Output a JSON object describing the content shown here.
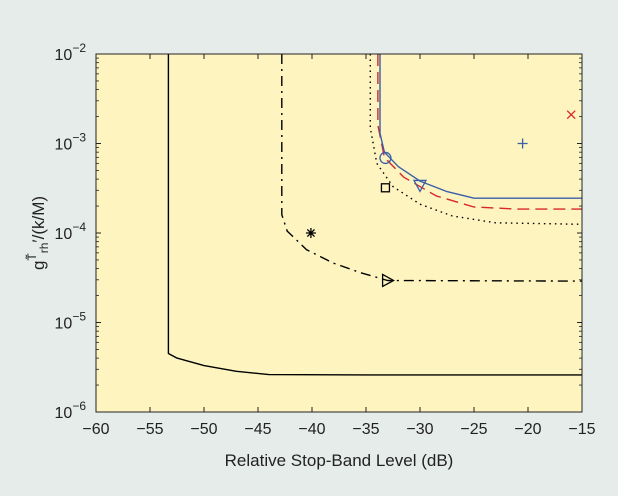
{
  "chart_data": {
    "type": "line",
    "xlabel": "Relative Stop-Band Level (dB)",
    "ylabel": "g^{T̃_rh'}/(k/M)",
    "ylabel_parts": {
      "base": "g",
      "sup": "T̃",
      "sub": "rh",
      "tail": "′/(k/M)"
    },
    "xlim": [
      -60,
      -15
    ],
    "ylim": [
      1e-06,
      0.01
    ],
    "yscale": "log",
    "grid": false,
    "x_ticks": [
      -60,
      -55,
      -50,
      -45,
      -40,
      -35,
      -30,
      -25,
      -20,
      -15
    ],
    "y_ticks": [
      {
        "value": 1e-06,
        "mantissa": "10",
        "exp": "−6"
      },
      {
        "value": 1e-05,
        "mantissa": "10",
        "exp": "−5"
      },
      {
        "value": 0.0001,
        "mantissa": "10",
        "exp": "−4"
      },
      {
        "value": 0.001,
        "mantissa": "10",
        "exp": "−3"
      },
      {
        "value": 0.01,
        "mantissa": "10",
        "exp": "−2"
      }
    ],
    "series": [
      {
        "color": "#000000",
        "dash": "solid",
        "points": [
          [
            -53.3,
            0.01
          ],
          [
            -53.3,
            4.5e-06
          ],
          [
            -52.5,
            4e-06
          ],
          [
            -50,
            3.3e-06
          ],
          [
            -47,
            2.85e-06
          ],
          [
            -44,
            2.62e-06
          ],
          [
            -35,
            2.6e-06
          ],
          [
            -15,
            2.6e-06
          ]
        ]
      },
      {
        "color": "#000000",
        "dash": "dashdot",
        "points": [
          [
            -42.8,
            0.01
          ],
          [
            -42.8,
            0.00016
          ],
          [
            -42.3,
            0.000105
          ],
          [
            -40.5,
            6.5e-05
          ],
          [
            -38,
            4.6e-05
          ],
          [
            -35.5,
            3.6e-05
          ],
          [
            -33,
            2.95e-05
          ],
          [
            -15,
            2.9e-05
          ]
        ]
      },
      {
        "color": "#000000",
        "dash": "dotted",
        "points": [
          [
            -34.6,
            0.01
          ],
          [
            -34.6,
            0.0015
          ],
          [
            -34,
            0.0006
          ],
          [
            -32.5,
            0.00033
          ],
          [
            -30,
            0.00021
          ],
          [
            -27,
            0.000155
          ],
          [
            -23,
            0.00013
          ],
          [
            -15,
            0.000125
          ]
        ]
      },
      {
        "color": "#d8262c",
        "dash": "dashed",
        "points": [
          [
            -33.9,
            0.01
          ],
          [
            -33.9,
            0.0016
          ],
          [
            -33.3,
            0.0007
          ],
          [
            -31.5,
            0.00042
          ],
          [
            -28.5,
            0.00026
          ],
          [
            -25,
            0.000195
          ],
          [
            -21,
            0.000185
          ],
          [
            -15,
            0.000185
          ]
        ]
      },
      {
        "color": "#3a5ea8",
        "dash": "solid",
        "points": [
          [
            -33.7,
            0.01
          ],
          [
            -33.7,
            0.0013
          ],
          [
            -33.3,
            0.0008
          ],
          [
            -32,
            0.00055
          ],
          [
            -30,
            0.00038
          ],
          [
            -27.5,
            0.00029
          ],
          [
            -25,
            0.000245
          ],
          [
            -20,
            0.000245
          ],
          [
            -15,
            0.000245
          ]
        ]
      }
    ],
    "markers": [
      {
        "symbol": "plus",
        "x": -20.5,
        "y": 0.001,
        "color": "#3a5ea8"
      },
      {
        "symbol": "cross",
        "x": -16,
        "y": 0.0021,
        "color": "#d8262c"
      },
      {
        "symbol": "circle",
        "x": -33.2,
        "y": 0.00069,
        "color": "#3a5ea8"
      },
      {
        "symbol": "square",
        "x": -33.2,
        "y": 0.00032,
        "color": "#000000"
      },
      {
        "symbol": "triangle-down",
        "x": -30.0,
        "y": 0.00034,
        "color": "#3a5ea8"
      },
      {
        "symbol": "asterisk",
        "x": -40.1,
        "y": 0.0001,
        "color": "#000000"
      },
      {
        "symbol": "triangle-right",
        "x": -33.0,
        "y": 2.95e-05,
        "color": "#000000"
      }
    ],
    "style": {
      "plot_background": "#fdf4c0",
      "figure_background": "#e6ece9"
    }
  }
}
